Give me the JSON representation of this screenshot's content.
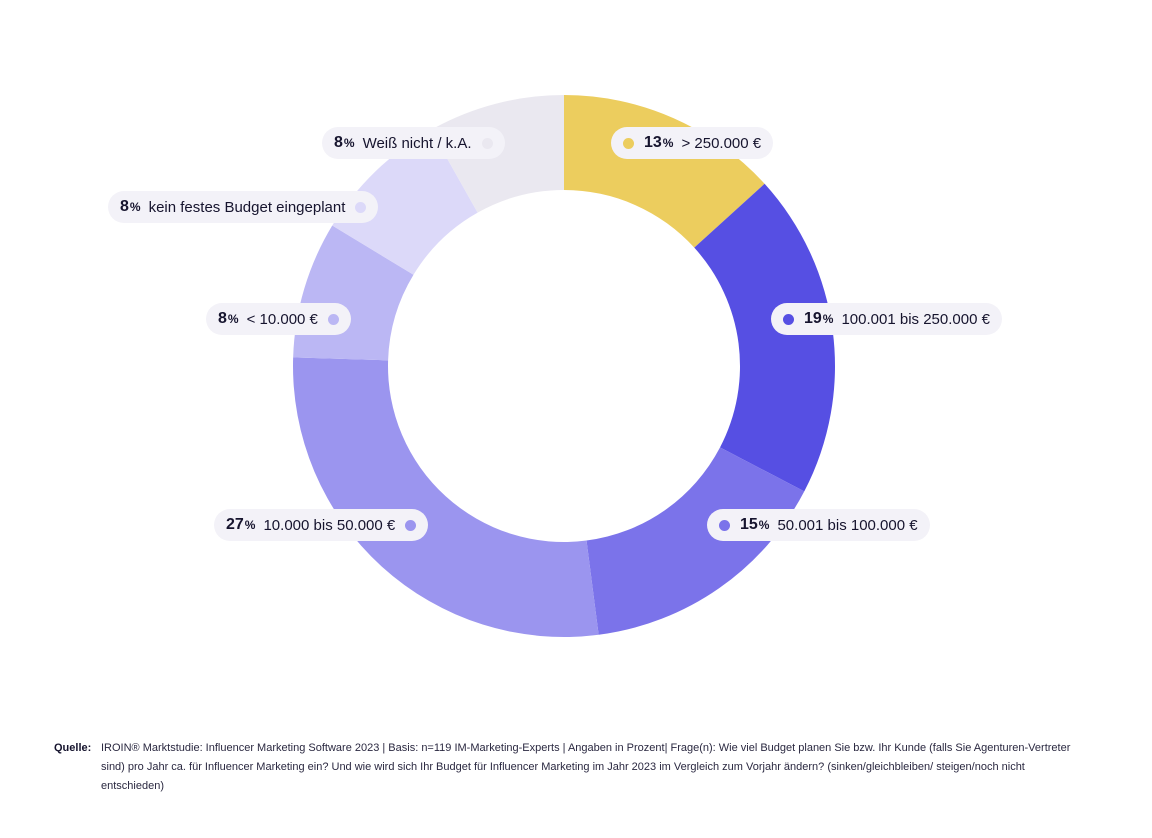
{
  "chart_data": {
    "type": "pie",
    "variant": "donut",
    "slices": [
      {
        "pct": "13",
        "unit": "%",
        "label": "> 250.000 €",
        "value": 13,
        "color": "#eccd5e"
      },
      {
        "pct": "19",
        "unit": "%",
        "label": "100.001 bis 250.000 €",
        "value": 19,
        "color": "#564fe3"
      },
      {
        "pct": "15",
        "unit": "%",
        "label": "50.001 bis 100.000 €",
        "value": 15,
        "color": "#7b73ea"
      },
      {
        "pct": "27",
        "unit": "%",
        "label": "10.000 bis 50.000 €",
        "value": 27,
        "color": "#9b95ef"
      },
      {
        "pct": "8",
        "unit": "%",
        "label": "< 10.000 €",
        "value": 8,
        "color": "#bbb7f4"
      },
      {
        "pct": "8",
        "unit": "%",
        "label": "kein festes Budget eingeplant",
        "value": 8,
        "color": "#dcd9f9"
      },
      {
        "pct": "8",
        "unit": "%",
        "label": "Weiß nicht / k.A.",
        "value": 8,
        "color": "#eae8f0"
      }
    ]
  },
  "source": {
    "label": "Quelle:",
    "text": "IROIN® Marktstudie: Influencer Marketing Software 2023 | Basis: n=119 IM-Marketing-Experts | Angaben in Prozent| Frage(n): Wie viel Budget planen Sie bzw. Ihr Kunde (falls Sie Agenturen-Vertreter sind) pro Jahr ca. für Influencer Marketing ein? Und wie wird sich Ihr Budget für Influencer Marketing im Jahr 2023 im Vergleich zum Vorjahr ändern? (sinken/gleichbleiben/ steigen/noch nicht entschieden)"
  }
}
